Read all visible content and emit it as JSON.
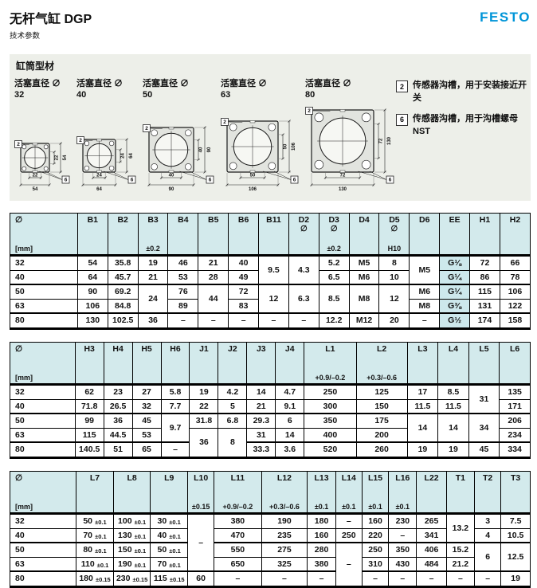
{
  "header": {
    "title": "无杆气缸 DGP",
    "subtitle": "技术参数",
    "logo": "FESTO"
  },
  "section": {
    "title": "缸筒型材",
    "diagrams": [
      {
        "label": "活塞直径 ∅ 32",
        "inner": "22",
        "outer": "54"
      },
      {
        "label": "活塞直径 ∅\n40",
        "inner": "24",
        "outer": "64"
      },
      {
        "label": "活塞直径 ∅\n50",
        "inner": "40",
        "outer": "90"
      },
      {
        "label": "活塞直径 ∅\n63",
        "inner": "50",
        "outer": "106"
      },
      {
        "label": "活塞直径 ∅\n80",
        "inner": "72",
        "outer": "130"
      }
    ],
    "legend": [
      {
        "key": "2",
        "text": "传感器沟槽，用于安装接近开关"
      },
      {
        "key": "6",
        "text": "传感器沟槽，用于沟槽螺母 NST"
      }
    ]
  },
  "tables": [
    {
      "name": "parameter-table-1",
      "highlight_col": 13,
      "headers": [
        {
          "t": "∅",
          "b": "[mm]"
        },
        {
          "t": "B1"
        },
        {
          "t": "B2"
        },
        {
          "t": "B3",
          "b": "±0.2"
        },
        {
          "t": "B4"
        },
        {
          "t": "B5"
        },
        {
          "t": "B6"
        },
        {
          "t": "B11"
        },
        {
          "t": "D2",
          "m": "∅"
        },
        {
          "t": "D3",
          "m": "∅",
          "b": "±0.2"
        },
        {
          "t": "D4"
        },
        {
          "t": "D5",
          "m": "∅",
          "b": "H10"
        },
        {
          "t": "D6"
        },
        {
          "t": "EE"
        },
        {
          "t": "H1"
        },
        {
          "t": "H2"
        }
      ],
      "rows": [
        [
          "32",
          "54",
          "35.8",
          "19",
          "46",
          "21",
          "40",
          "9.5",
          "4.3",
          "5.2",
          "M5",
          "8",
          "M5",
          "G⅛",
          "72",
          "66"
        ],
        [
          "40",
          "64",
          "45.7",
          "21",
          "53",
          "28",
          "49",
          "^",
          "^",
          "6.5",
          "M6",
          "10",
          "^",
          "G¼",
          "86",
          "78"
        ],
        [
          "50",
          "90",
          "69.2",
          "24",
          "76",
          "44",
          "72",
          "12",
          "6.3",
          "8.5",
          "M8",
          "12",
          "M6",
          "G¼",
          "115",
          "106"
        ],
        [
          "63",
          "106",
          "84.8",
          "^",
          "89",
          "^",
          "83",
          "^",
          "^",
          "^",
          "^",
          "^",
          "M8",
          "G⅜",
          "131",
          "122"
        ],
        [
          "80",
          "130",
          "102.5",
          "36",
          "–",
          "–",
          "–",
          "–",
          "–",
          "12.2",
          "M12",
          "20",
          "–",
          "G½",
          "174",
          "158"
        ]
      ]
    },
    {
      "name": "parameter-table-2",
      "headers": [
        {
          "t": "∅",
          "b": "[mm]"
        },
        {
          "t": "H3"
        },
        {
          "t": "H4"
        },
        {
          "t": "H5"
        },
        {
          "t": "H6"
        },
        {
          "t": "J1"
        },
        {
          "t": "J2"
        },
        {
          "t": "J3"
        },
        {
          "t": "J4"
        },
        {
          "t": "L1",
          "b": "+0.9/–0.2"
        },
        {
          "t": "L2",
          "b": "+0.3/–0.6"
        },
        {
          "t": "L3"
        },
        {
          "t": "L4"
        },
        {
          "t": "L5"
        },
        {
          "t": "L6"
        }
      ],
      "rows": [
        [
          "32",
          "62",
          "23",
          "27",
          "5.8",
          "19",
          "4.2",
          "14",
          "4.7",
          "250",
          "125",
          "17",
          "8.5",
          "31",
          "135"
        ],
        [
          "40",
          "71.8",
          "26.5",
          "32",
          "7.7",
          "22",
          "5",
          "21",
          "9.1",
          "300",
          "150",
          "11.5",
          "11.5",
          "^",
          "171"
        ],
        [
          "50",
          "99",
          "36",
          "45",
          "9.7",
          "31.8",
          "6.8",
          "29.3",
          "6",
          "350",
          "175",
          "14",
          "14",
          "34",
          "206"
        ],
        [
          "63",
          "115",
          "44.5",
          "53",
          "^",
          "36",
          "8",
          "31",
          "14",
          "400",
          "200",
          "^",
          "^",
          "^",
          "234"
        ],
        [
          "80",
          "140.5",
          "51",
          "65",
          "–",
          "^",
          "^",
          "33.3",
          "3.6",
          "520",
          "260",
          "19",
          "19",
          "45",
          "334"
        ]
      ]
    },
    {
      "name": "parameter-table-3",
      "headers": [
        {
          "t": "∅",
          "b": "[mm]"
        },
        {
          "t": "L7"
        },
        {
          "t": "L8"
        },
        {
          "t": "L9"
        },
        {
          "t": "L10",
          "b": "±0.15"
        },
        {
          "t": "L11",
          "b": "+0.9/–0.2"
        },
        {
          "t": "L12",
          "b": "+0.3/–0.6"
        },
        {
          "t": "L13",
          "b": "±0.1"
        },
        {
          "t": "L14",
          "b": "±0.1"
        },
        {
          "t": "L15",
          "b": "±0.1"
        },
        {
          "t": "L16",
          "b": "±0.1"
        },
        {
          "t": "L22"
        },
        {
          "t": "T1"
        },
        {
          "t": "T2"
        },
        {
          "t": "T3"
        }
      ],
      "rows": [
        [
          "32",
          "50 ±0.1",
          "100 ±0.1",
          "30 ±0.1",
          "–",
          "380",
          "190",
          "180",
          "–",
          "160",
          "230",
          "265",
          "13.2",
          "3",
          "7.5"
        ],
        [
          "40",
          "70 ±0.1",
          "130 ±0.1",
          "40 ±0.1",
          "^",
          "470",
          "235",
          "160",
          "250",
          "220",
          "–",
          "341",
          "^",
          "4",
          "10.5"
        ],
        [
          "50",
          "80 ±0.1",
          "150 ±0.1",
          "50 ±0.1",
          "^",
          "550",
          "275",
          "280",
          "–",
          "250",
          "350",
          "406",
          "15.2",
          "6",
          "12.5"
        ],
        [
          "63",
          "110 ±0.1",
          "190 ±0.1",
          "70 ±0.1",
          "^",
          "650",
          "325",
          "380",
          "^",
          "310",
          "430",
          "484",
          "21.2",
          "^",
          "^"
        ],
        [
          "80",
          "180 ±0.15",
          "230 ±0.15",
          "115 ±0.15",
          "60",
          "–",
          "–",
          "–",
          "^",
          "–",
          "–",
          "–",
          "–",
          "–",
          "19"
        ]
      ]
    }
  ]
}
